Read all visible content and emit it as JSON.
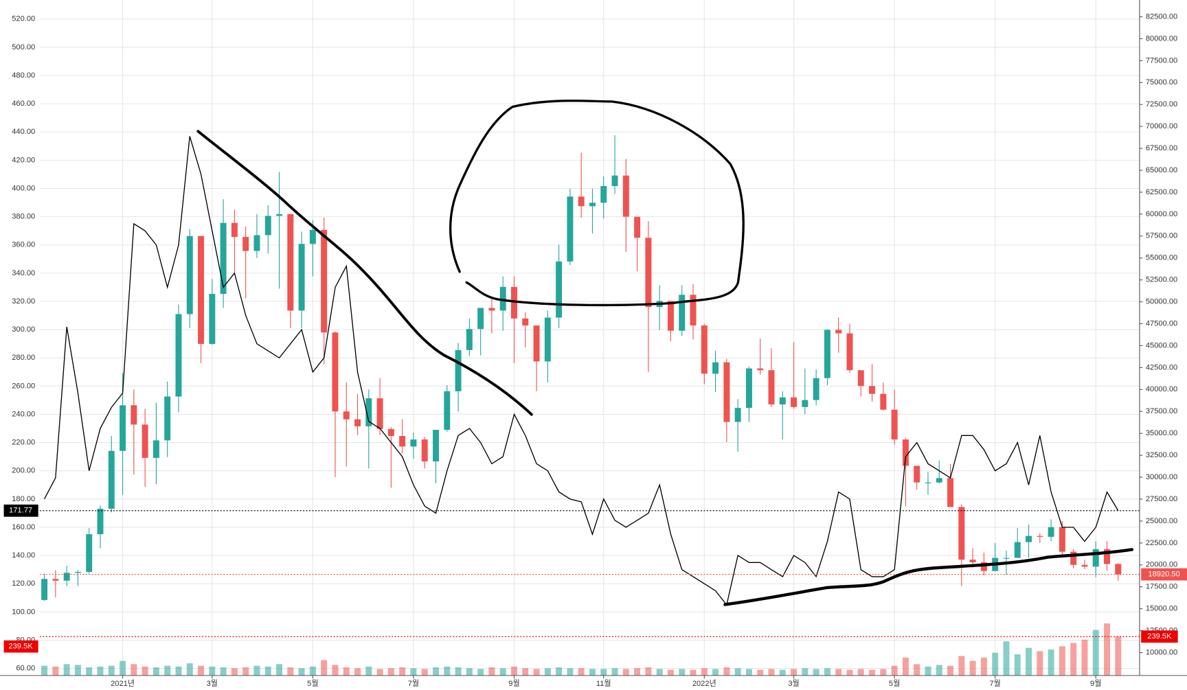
{
  "chart_data": {
    "type": "candlestick",
    "categories": [
      null,
      null,
      null,
      null,
      null,
      null,
      null,
      "2021년",
      null,
      null,
      null,
      null,
      null,
      null,
      null,
      "3월",
      null,
      null,
      null,
      null,
      null,
      null,
      null,
      null,
      "5월",
      null,
      null,
      null,
      null,
      null,
      null,
      null,
      null,
      "7월",
      null,
      null,
      null,
      null,
      null,
      null,
      null,
      null,
      "9월",
      null,
      null,
      null,
      null,
      null,
      null,
      null,
      "11월",
      null,
      null,
      null,
      null,
      null,
      null,
      null,
      null,
      "2022년",
      null,
      null,
      null,
      null,
      null,
      null,
      null,
      "3월",
      null,
      null,
      null,
      null,
      null,
      null,
      null,
      null,
      "5월",
      null,
      null,
      null,
      null,
      null,
      null,
      null,
      null,
      "7월",
      null,
      null,
      null,
      null,
      null,
      null,
      null,
      null,
      "9월",
      null,
      null
    ],
    "candles": {
      "axis": "y2",
      "color_up": "#26a69a",
      "color_down": "#ef5350",
      "last_label": "18920.50",
      "open": [
        16000,
        18400,
        18200,
        19100,
        19200,
        23500,
        26400,
        33000,
        38200,
        36000,
        32200,
        34200,
        39200,
        48600,
        57500,
        45200,
        50900,
        59000,
        57400,
        55800,
        57600,
        59800,
        60000,
        49000,
        56600,
        58200,
        46500,
        37500,
        36600,
        35800,
        39000,
        35500,
        34700,
        33500,
        34300,
        31800,
        35400,
        39800,
        44500,
        46900,
        49300,
        49000,
        51700,
        48100,
        47300,
        43200,
        48200,
        54600,
        62000,
        60900,
        61300,
        63200,
        64400,
        59700,
        57300,
        49400,
        50100,
        46700,
        50800,
        47300,
        41800,
        43100,
        36300,
        37900,
        42400,
        42200,
        38300,
        39100,
        38000,
        38800,
        41300,
        46800,
        46400,
        42200,
        40400,
        39500,
        37700,
        34300,
        31300,
        29400,
        29400,
        29900,
        26600,
        20600,
        20300,
        19300,
        20800,
        20800,
        22600,
        23300,
        23200,
        24300,
        21500,
        20000,
        19800,
        21800,
        20100
      ],
      "high": [
        19000,
        19400,
        19900,
        19400,
        24200,
        26800,
        34700,
        41900,
        40000,
        37800,
        38500,
        40900,
        49700,
        58300,
        57500,
        52600,
        61700,
        60500,
        58600,
        60000,
        61000,
        64800,
        60000,
        58000,
        59300,
        59600,
        46600,
        40800,
        39500,
        40000,
        41300,
        35700,
        36600,
        35100,
        34600,
        35400,
        40500,
        45300,
        48100,
        49300,
        50500,
        52900,
        52900,
        48800,
        47300,
        49000,
        56500,
        62900,
        67000,
        62900,
        64300,
        69000,
        66300,
        59500,
        59200,
        51900,
        50000,
        51900,
        52000,
        47500,
        44400,
        43500,
        38900,
        42600,
        45800,
        44700,
        39800,
        45400,
        42400,
        42300,
        46900,
        48200,
        47500,
        41600,
        42900,
        40800,
        40000,
        34500,
        31300,
        30600,
        31900,
        31500,
        26900,
        21900,
        21400,
        22500,
        21600,
        24200,
        24600,
        23600,
        25200,
        25000,
        21800,
        20600,
        22700,
        22700,
        20200
      ],
      "low": [
        15900,
        16300,
        17600,
        17600,
        19000,
        21900,
        26000,
        28000,
        30300,
        28900,
        29200,
        32300,
        37400,
        47000,
        43000,
        45100,
        49300,
        53300,
        50400,
        55000,
        55500,
        51500,
        47000,
        47000,
        52900,
        42900,
        30000,
        31200,
        34800,
        31000,
        34800,
        28800,
        32700,
        32100,
        31000,
        29300,
        35200,
        37500,
        43800,
        43900,
        46400,
        46700,
        43000,
        44800,
        39800,
        40800,
        47000,
        54200,
        59600,
        57800,
        59500,
        62300,
        55700,
        53500,
        42000,
        46800,
        45500,
        46100,
        45700,
        40600,
        39700,
        34000,
        32900,
        36300,
        41700,
        38000,
        34300,
        37800,
        37200,
        38200,
        40500,
        44200,
        41900,
        39200,
        38600,
        37600,
        33700,
        26700,
        28600,
        28000,
        29300,
        26600,
        17600,
        19700,
        18800,
        19300,
        18900,
        20800,
        20800,
        22500,
        22700,
        20800,
        19600,
        19500,
        18600,
        19300,
        18200
      ],
      "close": [
        18400,
        18200,
        19100,
        19200,
        23500,
        26400,
        33000,
        38200,
        36000,
        32200,
        34200,
        39200,
        48600,
        57500,
        45200,
        50900,
        59000,
        57400,
        55800,
        57600,
        59800,
        60000,
        49000,
        56600,
        58200,
        46500,
        37500,
        36600,
        35800,
        39000,
        35500,
        34700,
        33500,
        34300,
        31800,
        35400,
        39800,
        44500,
        46900,
        49300,
        49000,
        51700,
        48100,
        47300,
        43200,
        48200,
        54600,
        62000,
        60900,
        61300,
        63200,
        64400,
        59700,
        57300,
        49400,
        50100,
        46700,
        50800,
        47300,
        41800,
        43100,
        36300,
        37900,
        42400,
        42200,
        38300,
        39100,
        38000,
        38800,
        41300,
        46800,
        46400,
        42200,
        40400,
        39500,
        37700,
        34300,
        31300,
        29400,
        29400,
        29900,
        26600,
        20600,
        20300,
        19300,
        20800,
        20800,
        22600,
        23300,
        23200,
        24300,
        21500,
        20000,
        19800,
        21800,
        20100,
        18920.5
      ]
    },
    "line": {
      "axis": "y",
      "color": "#000000",
      "values": [
        180,
        195,
        302,
        255,
        200,
        230,
        245,
        255,
        375,
        370,
        360,
        330,
        360,
        437,
        410,
        370,
        330,
        340,
        310,
        290,
        285,
        280,
        290,
        300,
        270,
        280,
        330,
        345,
        270,
        235,
        230,
        220,
        210,
        190,
        175,
        170,
        200,
        225,
        230,
        220,
        205,
        210,
        240,
        225,
        205,
        200,
        185,
        180,
        178,
        155,
        180,
        165,
        160,
        165,
        170,
        190,
        155,
        130,
        125,
        120,
        115,
        105,
        140,
        135,
        135,
        130,
        125,
        140,
        135,
        125,
        150,
        185,
        180,
        130,
        125,
        125,
        130,
        210,
        220,
        205,
        200,
        195,
        225,
        225,
        215,
        200,
        205,
        220,
        190,
        225,
        185,
        160,
        160,
        150,
        160,
        185,
        171.77
      ]
    },
    "volume": {
      "last_label": "239.5K",
      "values": [
        60,
        55,
        70,
        65,
        50,
        55,
        60,
        90,
        70,
        55,
        50,
        60,
        55,
        75,
        60,
        55,
        50,
        45,
        50,
        60,
        55,
        70,
        50,
        45,
        55,
        95,
        65,
        50,
        45,
        55,
        40,
        45,
        50,
        45,
        40,
        50,
        55,
        50,
        45,
        40,
        50,
        45,
        55,
        45,
        40,
        45,
        50,
        45,
        45,
        40,
        40,
        45,
        40,
        45,
        50,
        40,
        35,
        40,
        35,
        45,
        40,
        50,
        45,
        40,
        35,
        40,
        35,
        40,
        45,
        40,
        45,
        40,
        35,
        40,
        35,
        40,
        60,
        110,
        70,
        55,
        65,
        60,
        120,
        90,
        110,
        140,
        210,
        130,
        170,
        150,
        160,
        180,
        200,
        220,
        280,
        320,
        239.5
      ]
    },
    "ylim": [
      55,
      533.5
    ],
    "yticks": [
      {
        "value": 60,
        "label": "60.00"
      },
      {
        "value": 80,
        "label": "80.00"
      },
      {
        "value": 100,
        "label": "100.00"
      },
      {
        "value": 120,
        "label": "120.00"
      },
      {
        "value": 140,
        "label": "140.00"
      },
      {
        "value": 160,
        "label": "160.00"
      },
      {
        "value": 180,
        "label": "180.00"
      },
      {
        "value": 200,
        "label": "200.00"
      },
      {
        "value": 220,
        "label": "220.00"
      },
      {
        "value": 240,
        "label": "240.00"
      },
      {
        "value": 260,
        "label": "260.00"
      },
      {
        "value": 280,
        "label": "280.00"
      },
      {
        "value": 300,
        "label": "300.00"
      },
      {
        "value": 320,
        "label": "320.00"
      },
      {
        "value": 340,
        "label": "340.00"
      },
      {
        "value": 360,
        "label": "360.00"
      },
      {
        "value": 380,
        "label": "380.00"
      },
      {
        "value": 400,
        "label": "400.00"
      },
      {
        "value": 420,
        "label": "420.00"
      },
      {
        "value": 440,
        "label": "440.00"
      },
      {
        "value": 460,
        "label": "460.00"
      },
      {
        "value": 480,
        "label": "480.00"
      },
      {
        "value": 500,
        "label": "500.00"
      },
      {
        "value": 520,
        "label": "520.00"
      }
    ],
    "y2lim": [
      7388,
      84415
    ],
    "y2ticks": [
      {
        "value": 10000,
        "label": "10000.00"
      },
      {
        "value": 12500,
        "label": "12500.00"
      },
      {
        "value": 15000,
        "label": "15000.00"
      },
      {
        "value": 17500,
        "label": "17500.00"
      },
      {
        "value": 20000,
        "label": "20000.00"
      },
      {
        "value": 22500,
        "label": "22500.00"
      },
      {
        "value": 25000,
        "label": "25000.00"
      },
      {
        "value": 27500,
        "label": "27500.00"
      },
      {
        "value": 30000,
        "label": "30000.00"
      },
      {
        "value": 32500,
        "label": "32500.00"
      },
      {
        "value": 35000,
        "label": "35000.00"
      },
      {
        "value": 37500,
        "label": "37500.00"
      },
      {
        "value": 40000,
        "label": "40000.00"
      },
      {
        "value": 42500,
        "label": "42500.00"
      },
      {
        "value": 45000,
        "label": "45000.00"
      },
      {
        "value": 47500,
        "label": "47500.00"
      },
      {
        "value": 50000,
        "label": "50000.00"
      },
      {
        "value": 52500,
        "label": "52500.00"
      },
      {
        "value": 55000,
        "label": "55000.00"
      },
      {
        "value": 57500,
        "label": "57500.00"
      },
      {
        "value": 60000,
        "label": "60000.00"
      },
      {
        "value": 62500,
        "label": "62500.00"
      },
      {
        "value": 65000,
        "label": "65000.00"
      },
      {
        "value": 67500,
        "label": "67500.00"
      },
      {
        "value": 70000,
        "label": "70000.00"
      },
      {
        "value": 72500,
        "label": "72500.00"
      },
      {
        "value": 75000,
        "label": "75000.00"
      },
      {
        "value": 77500,
        "label": "77500.00"
      },
      {
        "value": 80000,
        "label": "80000.00"
      },
      {
        "value": 82500,
        "label": "82500.00"
      }
    ],
    "grid": true
  }
}
